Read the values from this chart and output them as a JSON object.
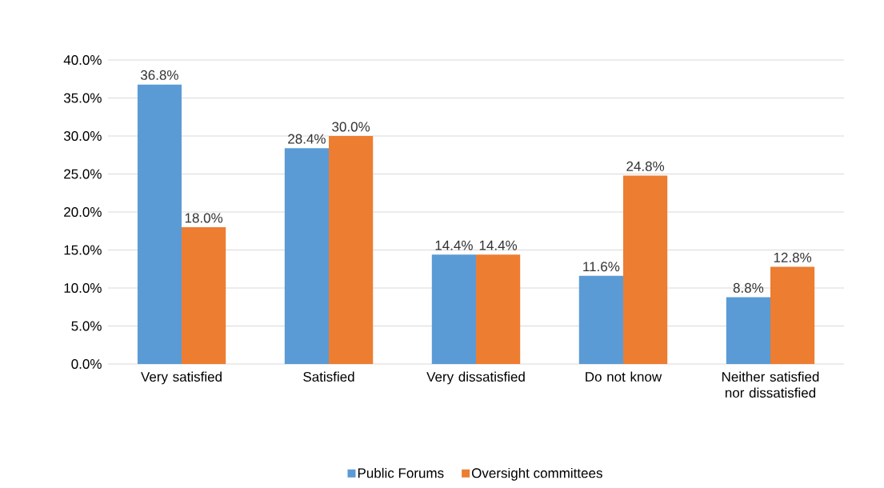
{
  "chart_data": {
    "type": "bar",
    "categories": [
      "Very satisfied",
      "Satisfied",
      "Very dissatisfied",
      "Do not know",
      "Neither satisfied nor dissatisfied"
    ],
    "series": [
      {
        "name": "Public Forums",
        "color": "#5b9bd5",
        "values": [
          36.8,
          28.4,
          14.4,
          11.6,
          8.8
        ],
        "value_labels": [
          "36.8%",
          "28.4%",
          "14.4%",
          "11.6%",
          "8.8%"
        ]
      },
      {
        "name": "Oversight committees",
        "color": "#ed7d31",
        "values": [
          18.0,
          30.0,
          14.4,
          24.8,
          12.8
        ],
        "value_labels": [
          "18.0%",
          "30.0%",
          "14.4%",
          "24.8%",
          "12.8%"
        ]
      }
    ],
    "ylim": [
      0,
      40
    ],
    "yticks": [
      {
        "value": 0,
        "label": "0.0%"
      },
      {
        "value": 5,
        "label": "5.0%"
      },
      {
        "value": 10,
        "label": "10.0%"
      },
      {
        "value": 15,
        "label": "15.0%"
      },
      {
        "value": 20,
        "label": "20.0%"
      },
      {
        "value": 25,
        "label": "25.0%"
      },
      {
        "value": 30,
        "label": "30.0%"
      },
      {
        "value": 35,
        "label": "35.0%"
      },
      {
        "value": 40,
        "label": "40.0%"
      }
    ],
    "grid": "y",
    "legend": "bottom"
  }
}
